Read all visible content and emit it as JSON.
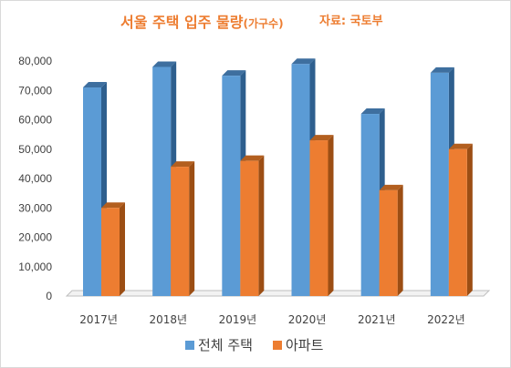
{
  "title": {
    "main": "서울 주택 입주 물량",
    "unit": "(가구수)",
    "source": "자료: 국토부"
  },
  "colors": {
    "total": "#5b9bd5",
    "total_side": "#2e5f8e",
    "total_top": "#3e6f9f",
    "apt": "#ed7d31",
    "apt_side": "#9c4e14",
    "apt_top": "#b35f1f",
    "axis": "#bfbfbf",
    "text": "#404040",
    "title": "#ed7d31"
  },
  "chart_data": {
    "type": "bar",
    "categories": [
      "2017년",
      "2018년",
      "2019년",
      "2020년",
      "2021년",
      "2022년"
    ],
    "series": [
      {
        "name": "전체 주택",
        "values": [
          71000,
          78000,
          75000,
          79000,
          62000,
          76000
        ]
      },
      {
        "name": "아파트",
        "values": [
          30000,
          44000,
          46000,
          53000,
          36000,
          50000
        ]
      }
    ],
    "yticks": [
      "0",
      "10,000",
      "20,000",
      "30,000",
      "40,000",
      "50,000",
      "60,000",
      "70,000",
      "80,000"
    ],
    "ylim": [
      0,
      80000
    ],
    "grid": false,
    "legend": "bottom",
    "style": "3d-bar",
    "title": "서울 주택 입주 물량(가구수)",
    "xlabel": "",
    "ylabel": ""
  }
}
